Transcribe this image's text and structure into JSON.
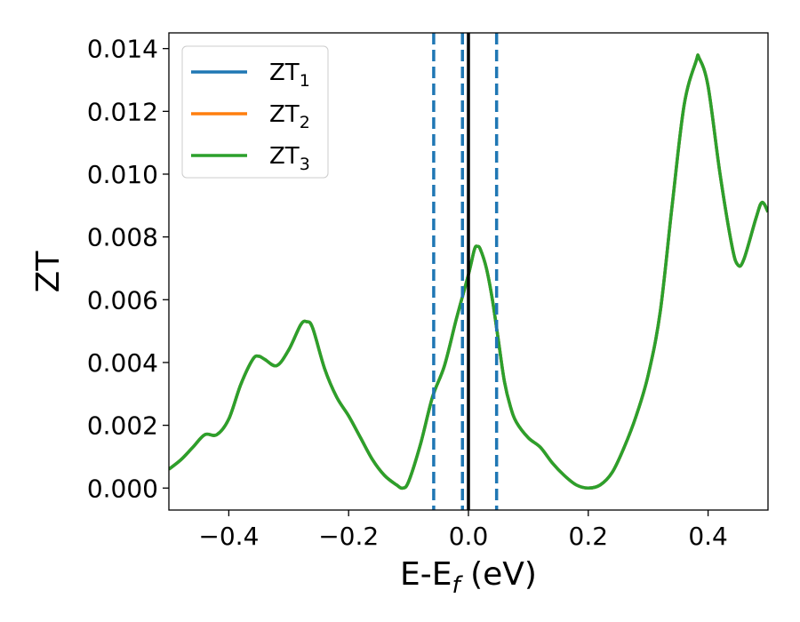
{
  "chart_data": {
    "type": "line",
    "title": "",
    "xlabel": "E-E",
    "xlabel_sub": "f",
    "xlabel_unit": " (eV)",
    "ylabel": "ZT",
    "xlim": [
      -0.5,
      0.5
    ],
    "ylim": [
      -0.0007,
      0.0145
    ],
    "xticks": [
      -0.4,
      -0.2,
      0.0,
      0.2,
      0.4
    ],
    "xtick_labels": [
      "−0.4",
      "−0.2",
      "0.0",
      "0.2",
      "0.4"
    ],
    "yticks": [
      0.0,
      0.002,
      0.004,
      0.006,
      0.008,
      0.01,
      0.012,
      0.014
    ],
    "ytick_labels": [
      "0.000",
      "0.002",
      "0.004",
      "0.006",
      "0.008",
      "0.010",
      "0.012",
      "0.014"
    ],
    "grid": false,
    "legend_position": "top-left",
    "vlines": [
      {
        "x": 0.0,
        "style": "solid",
        "color": "#000000"
      },
      {
        "x": -0.058,
        "style": "dashed",
        "color": "#1f77b4"
      },
      {
        "x": -0.01,
        "style": "dashed",
        "color": "#1f77b4"
      },
      {
        "x": 0.047,
        "style": "dashed",
        "color": "#1f77b4"
      }
    ],
    "x": [
      -0.5,
      -0.48,
      -0.46,
      -0.44,
      -0.42,
      -0.4,
      -0.38,
      -0.36,
      -0.35,
      -0.34,
      -0.32,
      -0.3,
      -0.28,
      -0.27,
      -0.26,
      -0.24,
      -0.22,
      -0.2,
      -0.18,
      -0.16,
      -0.14,
      -0.12,
      -0.11,
      -0.1,
      -0.08,
      -0.06,
      -0.04,
      -0.02,
      0.0,
      0.01,
      0.015,
      0.02,
      0.03,
      0.04,
      0.05,
      0.06,
      0.07,
      0.08,
      0.1,
      0.12,
      0.14,
      0.16,
      0.18,
      0.2,
      0.22,
      0.24,
      0.26,
      0.28,
      0.3,
      0.32,
      0.34,
      0.36,
      0.38,
      0.385,
      0.4,
      0.42,
      0.44,
      0.45,
      0.46,
      0.48,
      0.49,
      0.5
    ],
    "series": [
      {
        "name_base": "ZT",
        "name_sub": "1",
        "color": "#1f77b4",
        "values": [
          0.0006,
          0.0009,
          0.0013,
          0.0017,
          0.0017,
          0.0022,
          0.0033,
          0.0041,
          0.0042,
          0.0041,
          0.0039,
          0.0044,
          0.0052,
          0.0053,
          0.0051,
          0.0038,
          0.0029,
          0.0023,
          0.0016,
          0.0009,
          0.0004,
          0.0001,
          0.0,
          0.0002,
          0.0014,
          0.0029,
          0.0039,
          0.0054,
          0.0068,
          0.0076,
          0.0077,
          0.0076,
          0.007,
          0.006,
          0.0047,
          0.0034,
          0.0026,
          0.0021,
          0.0016,
          0.0013,
          0.0008,
          0.0004,
          0.0001,
          0.0,
          0.0001,
          0.0005,
          0.0013,
          0.0023,
          0.0036,
          0.0056,
          0.009,
          0.0122,
          0.0136,
          0.0137,
          0.0128,
          0.01,
          0.0077,
          0.0071,
          0.0073,
          0.0086,
          0.0091,
          0.0088
        ]
      },
      {
        "name_base": "ZT",
        "name_sub": "2",
        "color": "#ff7f0e",
        "values": [
          0.0006,
          0.0009,
          0.0013,
          0.0017,
          0.0017,
          0.0022,
          0.0033,
          0.0041,
          0.0042,
          0.0041,
          0.0039,
          0.0044,
          0.0052,
          0.0053,
          0.0051,
          0.0038,
          0.0029,
          0.0023,
          0.0016,
          0.0009,
          0.0004,
          0.0001,
          0.0,
          0.0002,
          0.0014,
          0.0029,
          0.0039,
          0.0054,
          0.0068,
          0.0076,
          0.0077,
          0.0076,
          0.007,
          0.006,
          0.0047,
          0.0034,
          0.0026,
          0.0021,
          0.0016,
          0.0013,
          0.0008,
          0.0004,
          0.0001,
          0.0,
          0.0001,
          0.0005,
          0.0013,
          0.0023,
          0.0036,
          0.0056,
          0.009,
          0.0122,
          0.0136,
          0.0137,
          0.0128,
          0.01,
          0.0077,
          0.0071,
          0.0073,
          0.0086,
          0.0091,
          0.0088
        ]
      },
      {
        "name_base": "ZT",
        "name_sub": "3",
        "color": "#2ca02c",
        "values": [
          0.0006,
          0.0009,
          0.0013,
          0.0017,
          0.0017,
          0.0022,
          0.0033,
          0.0041,
          0.0042,
          0.0041,
          0.0039,
          0.0044,
          0.0052,
          0.0053,
          0.0051,
          0.0038,
          0.0029,
          0.0023,
          0.0016,
          0.0009,
          0.0004,
          0.0001,
          0.0,
          0.0002,
          0.0014,
          0.0029,
          0.0039,
          0.0054,
          0.0068,
          0.0076,
          0.0077,
          0.0076,
          0.007,
          0.006,
          0.0047,
          0.0034,
          0.0026,
          0.0021,
          0.0016,
          0.0013,
          0.0008,
          0.0004,
          0.0001,
          0.0,
          0.0001,
          0.0005,
          0.0013,
          0.0023,
          0.0036,
          0.0056,
          0.009,
          0.0122,
          0.0136,
          0.0137,
          0.0128,
          0.01,
          0.0077,
          0.0071,
          0.0073,
          0.0086,
          0.0091,
          0.0088
        ]
      }
    ]
  }
}
